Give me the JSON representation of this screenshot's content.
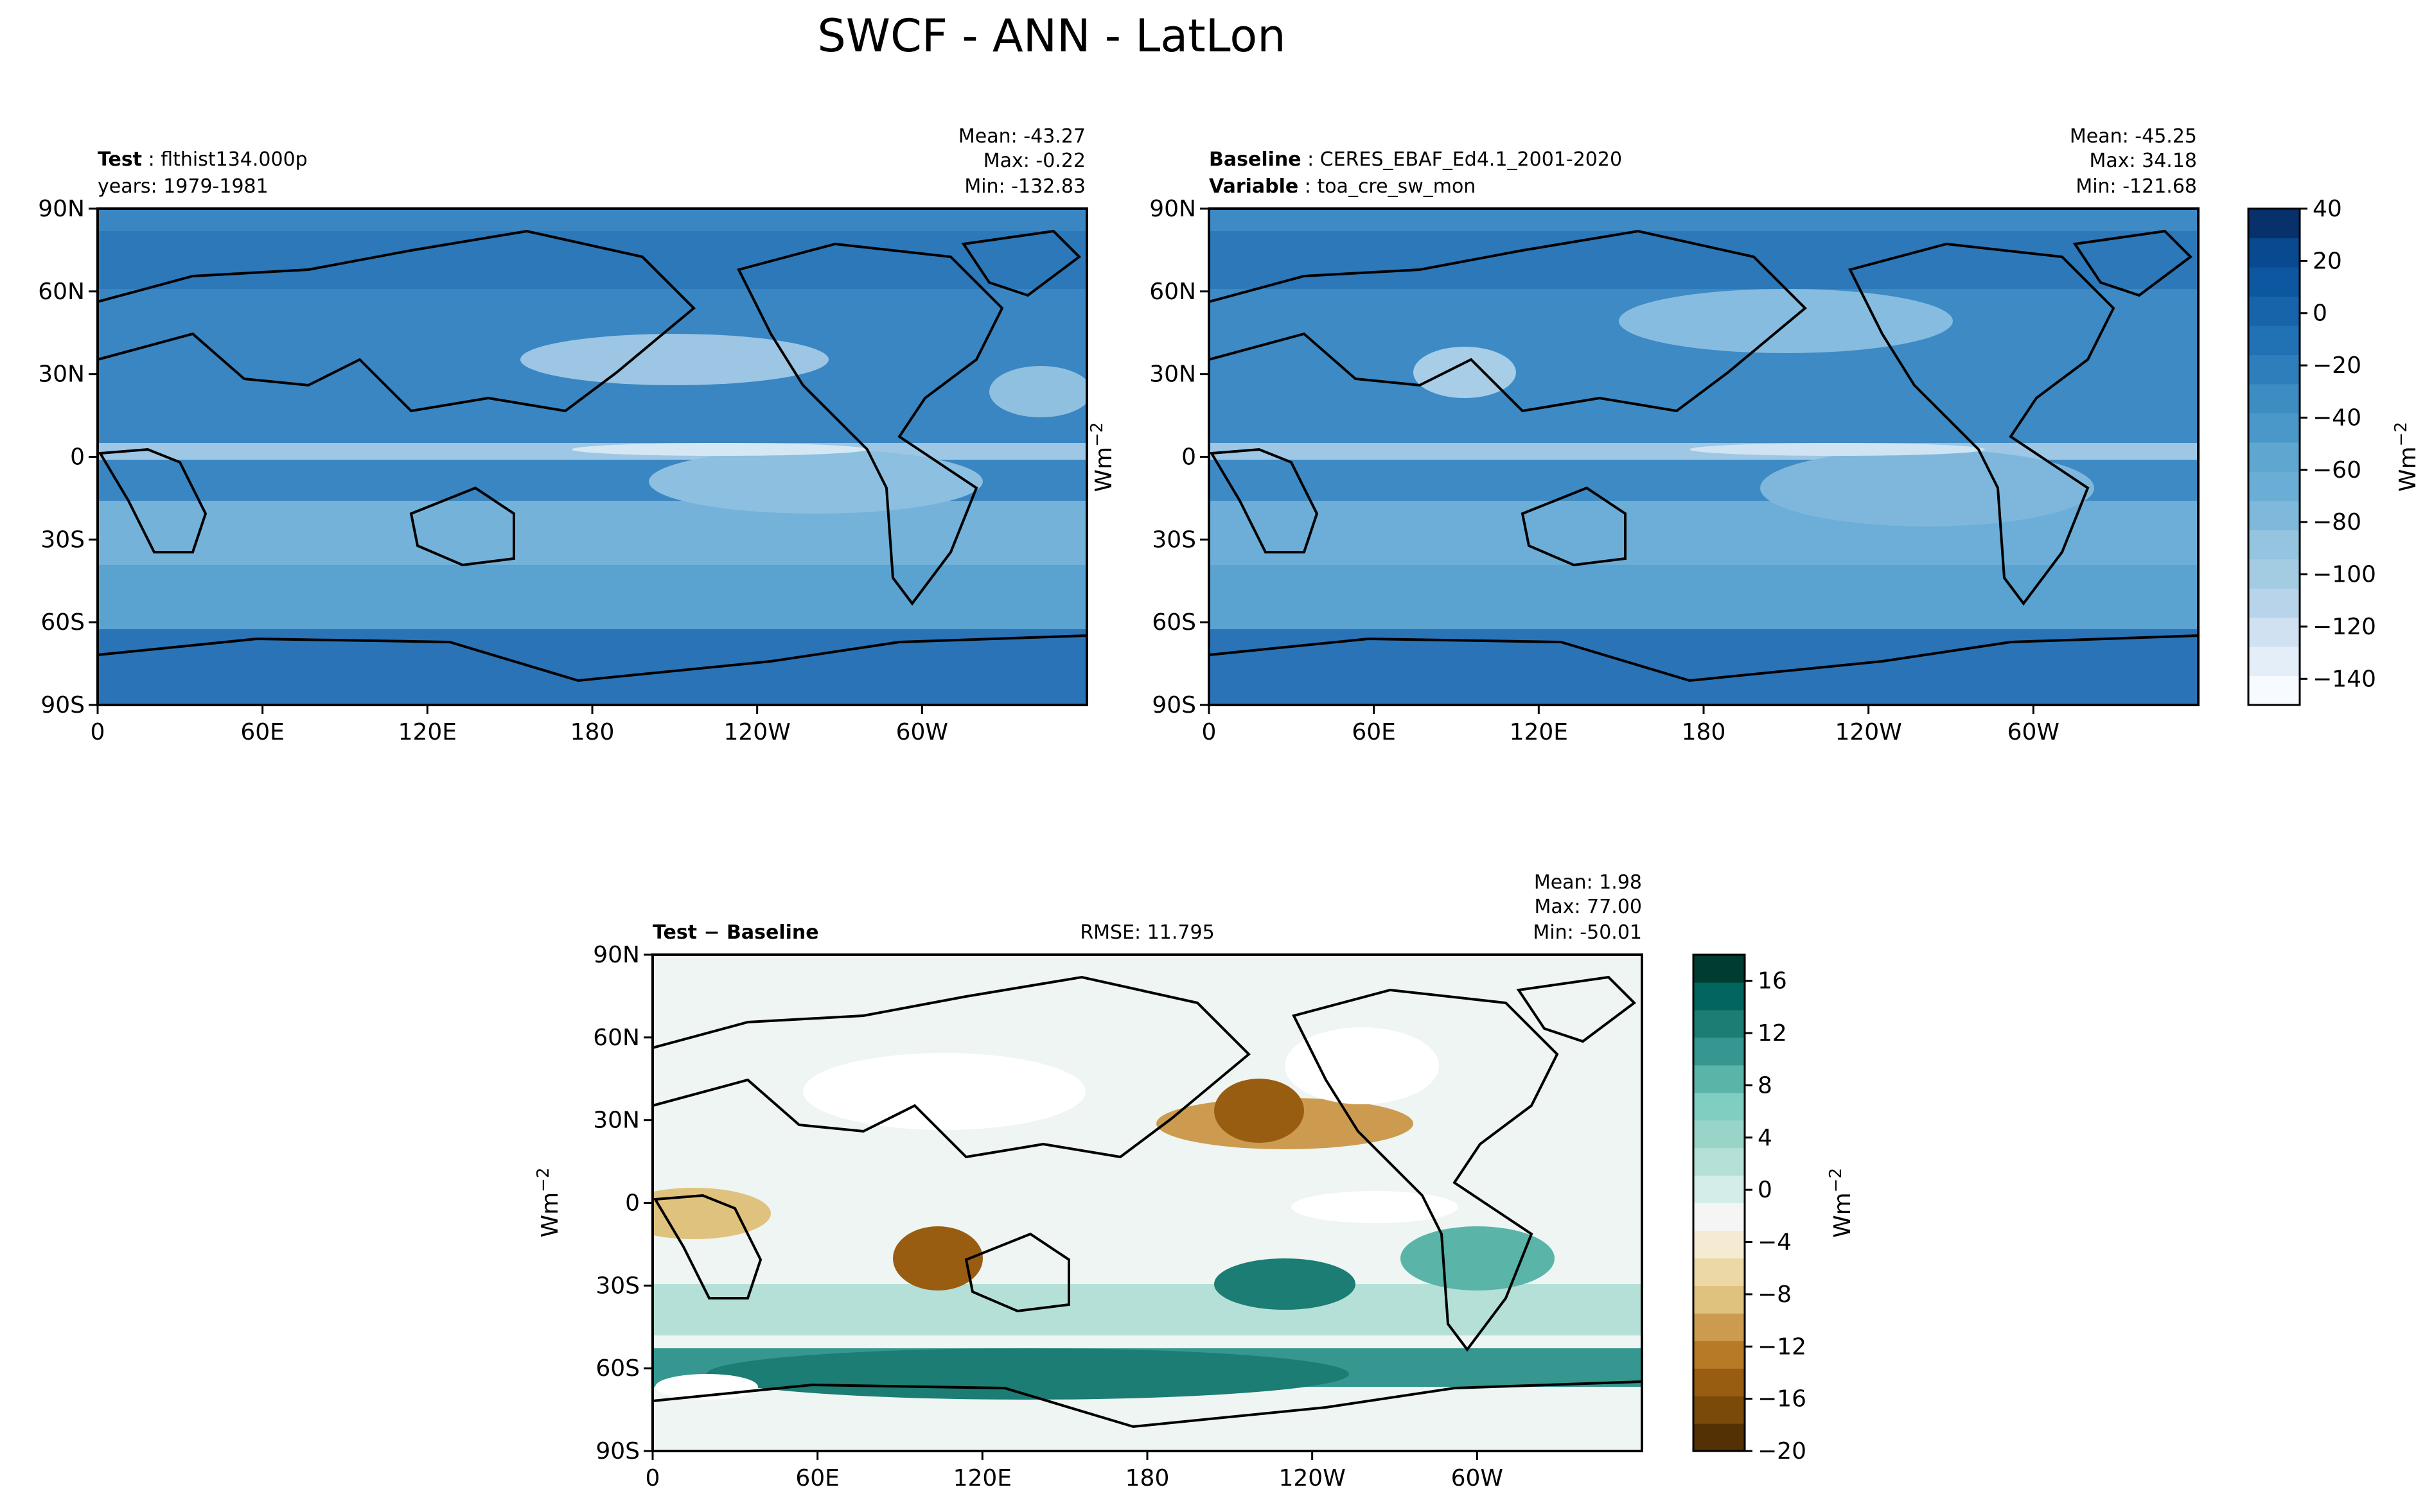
{
  "title": "SWCF - ANN - LatLon",
  "units_label": "Wm",
  "units_exp": "−2",
  "colors": {
    "blues": [
      "#f7fbff",
      "#e3eef9",
      "#d0e1f2",
      "#b7d4ea",
      "#a3cce3",
      "#94c4df",
      "#7eb8da",
      "#6aaed6",
      "#5fa6d1",
      "#4a98c9",
      "#3d8dc3",
      "#2e7ebc",
      "#2171b5",
      "#1764ab",
      "#0d57a1",
      "#084990",
      "#08306b"
    ],
    "brbg": [
      "#543005",
      "#7a4a0a",
      "#995d12",
      "#b77a27",
      "#cd9b4f",
      "#dfc27d",
      "#ecd8a6",
      "#f5ead2",
      "#f5f5f5",
      "#d5ede9",
      "#b5e0d8",
      "#99d4c8",
      "#80cdc1",
      "#5ab4a8",
      "#35978f",
      "#1b7d74",
      "#01665e",
      "#003c30"
    ],
    "land_outline": "#000000"
  },
  "chart_data": [
    {
      "id": "test",
      "type": "heatmap",
      "label_bold": "Test",
      "label_value": "flthist134.000p",
      "label_line2": "years: 1979-1981",
      "stats": {
        "mean": "Mean: -43.27",
        "max": "Max: -0.22",
        "min": "Min: -132.83"
      },
      "xlabel": "",
      "ylabel": "",
      "x_ticks": [
        "0",
        "60E",
        "120E",
        "180",
        "120W",
        "60W"
      ],
      "y_ticks": [
        "90N",
        "60N",
        "30N",
        "0",
        "30S",
        "60S",
        "90S"
      ],
      "xlim": [
        0,
        360
      ],
      "ylim": [
        -90,
        90
      ]
    },
    {
      "id": "baseline",
      "type": "heatmap",
      "label_bold": "Baseline",
      "label_value": "CERES_EBAF_Ed4.1_2001-2020",
      "label_bold2": "Variable",
      "label_value2": "toa_cre_sw_mon",
      "stats": {
        "mean": "Mean: -45.25",
        "max": "Max: 34.18",
        "min": "Min: -121.68"
      },
      "x_ticks": [
        "0",
        "60E",
        "120E",
        "180",
        "120W",
        "60W"
      ],
      "y_ticks": [
        "90N",
        "60N",
        "30N",
        "0",
        "30S",
        "60S",
        "90S"
      ],
      "xlim": [
        0,
        360
      ],
      "ylim": [
        -90,
        90
      ],
      "colorbar": {
        "ticks": [
          "40",
          "20",
          "0",
          "−20",
          "−40",
          "−60",
          "−80",
          "−100",
          "−120",
          "−140"
        ],
        "tick_values": [
          40,
          20,
          0,
          -20,
          -40,
          -60,
          -80,
          -100,
          -120,
          -140
        ],
        "range": [
          -150,
          40
        ],
        "label": "Wm−2"
      }
    },
    {
      "id": "difference",
      "type": "heatmap",
      "label_bold": "Test − Baseline",
      "rmse": "RMSE: 11.795",
      "stats": {
        "mean": "Mean:  1.98",
        "max": "Max: 77.00",
        "min": "Min: -50.01"
      },
      "x_ticks": [
        "0",
        "60E",
        "120E",
        "180",
        "120W",
        "60W"
      ],
      "y_ticks": [
        "90N",
        "60N",
        "30N",
        "0",
        "30S",
        "60S",
        "90S"
      ],
      "xlim": [
        0,
        360
      ],
      "ylim": [
        -90,
        90
      ],
      "colorbar": {
        "ticks": [
          "16",
          "12",
          "8",
          "4",
          "0",
          "−4",
          "−8",
          "−12",
          "−16",
          "−20"
        ],
        "tick_values": [
          16,
          12,
          8,
          4,
          0,
          -4,
          -8,
          -12,
          -16,
          -20
        ],
        "range": [
          -20,
          18
        ],
        "label": "Wm−2"
      }
    }
  ]
}
